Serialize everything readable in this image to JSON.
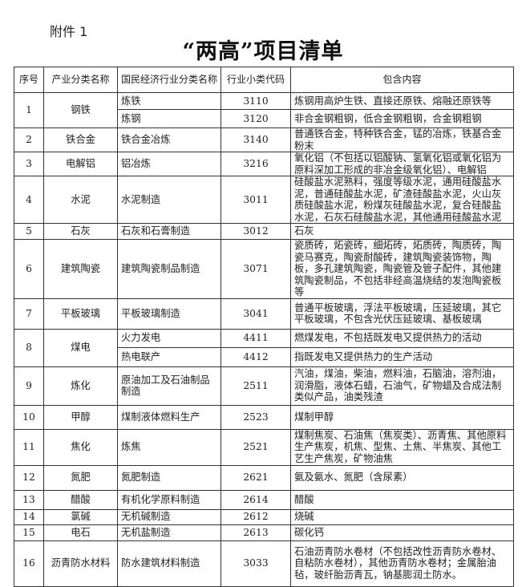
{
  "attachment_label": "附件 1",
  "title": "“两高”项目清单",
  "headers": [
    "序号",
    "产业分类名称",
    "国民经济行业分类名称",
    "行业小类代码",
    "包含内容"
  ],
  "rows": [
    {
      "seq": "1",
      "industry": "钢铁",
      "subs": [
        {
          "name": "炼铁",
          "code": "3110",
          "content": "炼钢用高炉生铁、直接还原铁、熔融还原铁等"
        },
        {
          "name": "炼钢",
          "code": "3120",
          "content": "非合金钢粗钢，低合金钢粗钢，合金钢粗钢"
        }
      ]
    },
    {
      "seq": "2",
      "industry": "铁合金",
      "subs": [
        {
          "name": "铁合金冶炼",
          "code": "3140",
          "content": "普通铁合金，特种铁合金，锰的冶炼，铁基合金粉末"
        }
      ]
    },
    {
      "seq": "3",
      "industry": "电解铝",
      "subs": [
        {
          "name": "铝冶炼",
          "code": "3216",
          "content": "氧化铝（不包括以铝酸钠、氢氧化铝或氧化铝为原料深加工形成的非冶金级氧化铝）、电解铝"
        }
      ]
    },
    {
      "seq": "4",
      "industry": "水泥",
      "subs": [
        {
          "name": "水泥制造",
          "code": "3011",
          "content": "硅酸盐水泥熟料，强度等级水泥，通用硅酸盐水泥，普通硅酸盐水泥，矿渣硅酸盐水泥，火山灰质硅酸盐水泥，粉煤灰硅酸盐水泥，复合硅酸盐水泥，石灰石硅酸盐水泥，其他通用硅酸盐水泥"
        }
      ]
    },
    {
      "seq": "5",
      "industry": "石灰",
      "subs": [
        {
          "name": "石灰和石膏制造",
          "code": "3012",
          "content": "石灰"
        }
      ]
    },
    {
      "seq": "6",
      "industry": "建筑陶瓷",
      "subs": [
        {
          "name": "建筑陶瓷制品制造",
          "code": "3071",
          "content": "瓷质砖，炻瓷砖，细炻砖，炻质砖，陶质砖，陶瓷马赛克，陶瓷耐酸砖，建筑陶瓷装饰物，陶板，多孔建筑陶瓷，陶瓷管及管子配件，其他建筑陶瓷制品，不包括非经高温烧结的发泡陶瓷板等"
        }
      ]
    },
    {
      "seq": "7",
      "industry": "平板玻璃",
      "subs": [
        {
          "name": "平板玻璃制造",
          "code": "3041",
          "content": "普通平板玻璃，浮法平板玻璃，压延玻璃，其它平板玻璃，不包含光伏压延玻璃、基板玻璃"
        }
      ]
    },
    {
      "seq": "8",
      "industry": "煤电",
      "subs": [
        {
          "name": "火力发电",
          "code": "4411",
          "content": "燃煤发电，不包括既发电又提供热力的活动"
        },
        {
          "name": "热电联产",
          "code": "4412",
          "content": "指既发电又提供热力的生产活动"
        }
      ]
    },
    {
      "seq": "9",
      "industry": "炼化",
      "subs": [
        {
          "name": "原油加工及石油制品制造",
          "code": "2511",
          "content": "汽油，煤油，柴油，燃料油，石脑油，溶剂油，润滑脂，液体石蜡，石油气，矿物蜡及合成法制类似产品，油类残渣"
        }
      ]
    },
    {
      "seq": "10",
      "industry": "甲醇",
      "subs": [
        {
          "name": "煤制液体燃料生产",
          "code": "2523",
          "content": "煤制甲醇"
        }
      ]
    },
    {
      "seq": "11",
      "industry": "焦化",
      "subs": [
        {
          "name": "炼焦",
          "code": "2521",
          "content": "煤制焦炭、石油焦（焦炭类）、沥青焦、其他原料生产焦炭，机焦、型焦、土焦、半焦炭、其他工艺生产焦炭，矿物油焦"
        }
      ]
    },
    {
      "seq": "12",
      "industry": "氮肥",
      "subs": [
        {
          "name": "氮肥制造",
          "code": "2621",
          "content": "氨及氨水、氮肥（含尿素）"
        }
      ]
    },
    {
      "seq": "13",
      "industry": "醋酸",
      "subs": [
        {
          "name": "有机化学原料制造",
          "code": "2614",
          "content": "醋酸"
        }
      ]
    },
    {
      "seq": "14",
      "industry": "氯碱",
      "subs": [
        {
          "name": "无机碱制造",
          "code": "2612",
          "content": "烧碱"
        }
      ]
    },
    {
      "seq": "15",
      "industry": "电石",
      "subs": [
        {
          "name": "无机盐制造",
          "code": "2613",
          "content": "碳化钙"
        }
      ]
    },
    {
      "seq": "16",
      "industry": "沥青防水材料",
      "subs": [
        {
          "name": "防水建筑材料制造",
          "code": "3033",
          "content": "石油沥青防水卷材（不包括改性沥青防水卷材、自粘防水卷材），其他沥青防水卷材；金属胎油毡，玻纤胎沥青瓦，钠基膨润土防水。"
        }
      ]
    }
  ]
}
